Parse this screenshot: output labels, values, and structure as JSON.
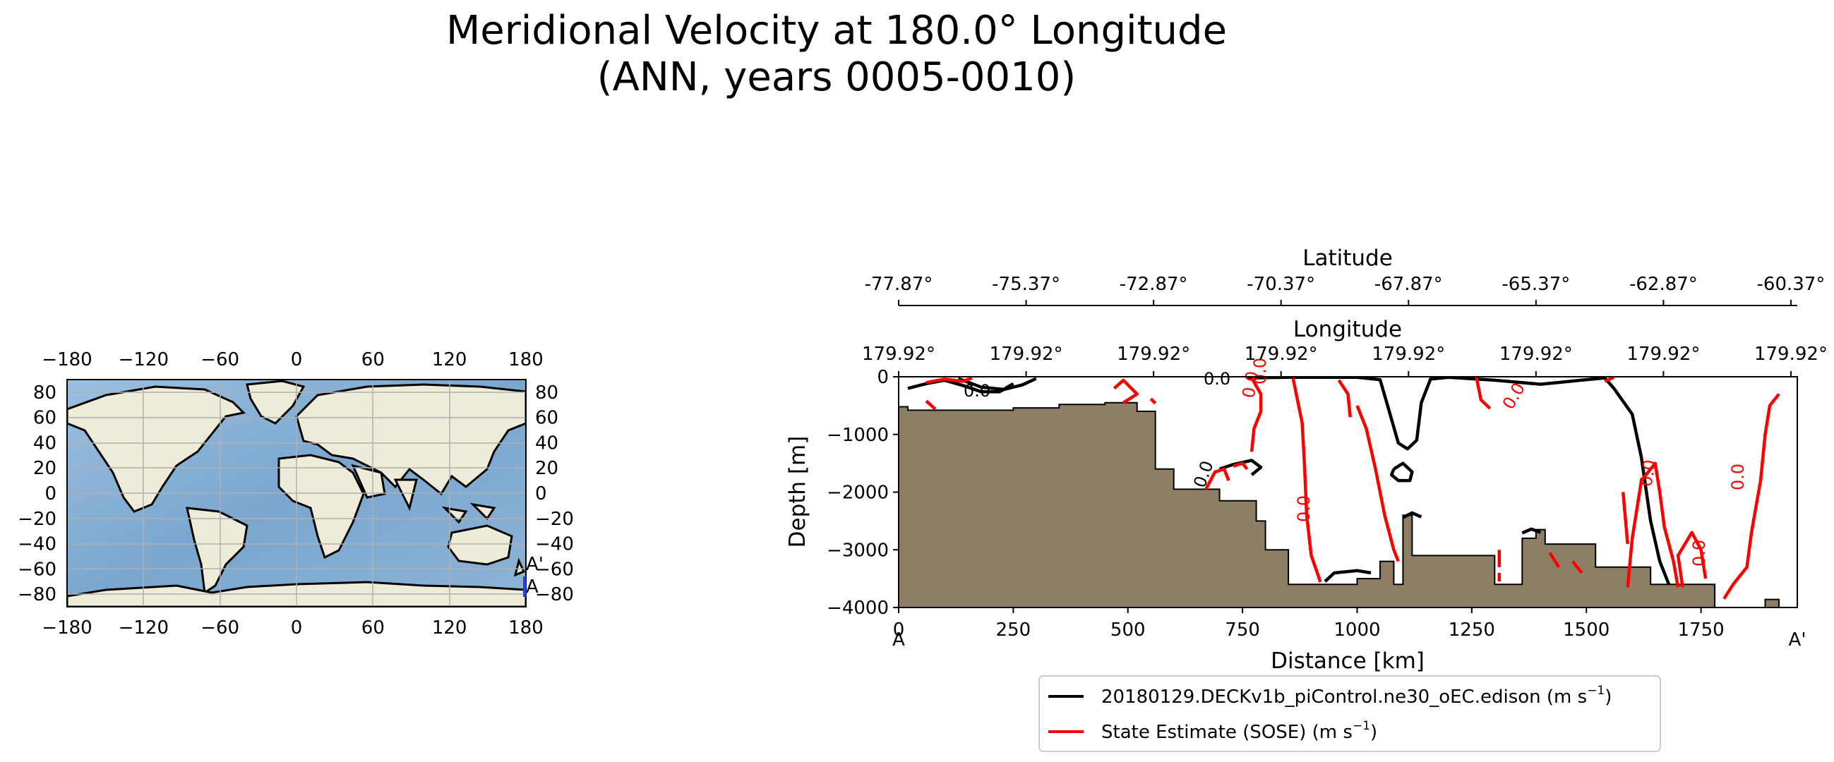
{
  "figure": {
    "title_line1": "Meridional Velocity at 180.0° Longitude",
    "title_line2": "(ANN, years 0005-0010)"
  },
  "colors": {
    "ocean": "#8db4d6",
    "ocean_deep": "#6f9cc8",
    "land": "#efebd9",
    "seafloor": "#8e7e65",
    "model_line": "#000000",
    "obs_line": "#ff0000",
    "transect": "#1f3fff",
    "grid": "#b0b0b0"
  },
  "chart_data": [
    {
      "type": "map",
      "name": "global-map-inset",
      "projection": "PlateCarree",
      "x_ticks": [
        "−180",
        "−120",
        "−60",
        "0",
        "60",
        "120",
        "180"
      ],
      "x_tick_values": [
        -180,
        -120,
        -60,
        0,
        60,
        120,
        180
      ],
      "y_ticks_left": [
        "80",
        "60",
        "40",
        "20",
        "0",
        "−20",
        "−40",
        "−60",
        "−80"
      ],
      "y_ticks_right": [
        "80",
        "60",
        "40",
        "20",
        "0",
        "−20",
        "−40",
        "−60",
        "−80"
      ],
      "y_tick_values": [
        80,
        60,
        40,
        20,
        0,
        -20,
        -40,
        -60,
        -80
      ],
      "xlim": [
        -180,
        180
      ],
      "ylim": [
        -90,
        90
      ],
      "transect": {
        "lon": 180.0,
        "lat_start": -77.87,
        "lat_end": -60.37,
        "label_start": "A",
        "label_end": "A'"
      }
    },
    {
      "type": "contour",
      "name": "meridional-velocity-section",
      "xlabel": "Distance [km]",
      "ylabel": "Depth [m]",
      "xlim": [
        0,
        1960
      ],
      "ylim": [
        -4000,
        0
      ],
      "x_ticks": [
        "0",
        "250",
        "500",
        "750",
        "1000",
        "1250",
        "1500",
        "1750"
      ],
      "x_tick_values": [
        0,
        250,
        500,
        750,
        1000,
        1250,
        1500,
        1750
      ],
      "y_ticks": [
        "0",
        "−1000",
        "−2000",
        "−3000",
        "−4000"
      ],
      "y_tick_values": [
        0,
        -1000,
        -2000,
        -3000,
        -4000
      ],
      "endpoint_labels": {
        "start": "A",
        "end": "A'"
      },
      "top_axis_longitude": {
        "label": "Longitude",
        "ticks": [
          "179.92°",
          "179.92°",
          "179.92°",
          "179.92°",
          "179.92°",
          "179.92°",
          "179.92°",
          "179.92°"
        ]
      },
      "top_axis_latitude": {
        "label": "Latitude",
        "ticks": [
          "-77.87°",
          "-75.37°",
          "-72.87°",
          "-70.37°",
          "-67.87°",
          "-65.37°",
          "-62.87°",
          "-60.37°"
        ]
      },
      "contour_level": 0.0,
      "contour_labels": [
        "0.0",
        "0.0",
        "0.0",
        "0.0",
        "0.0",
        "0.0",
        "0.0",
        "0.0",
        "0.0",
        "0.0"
      ],
      "bathymetry_km_depth": [
        [
          0,
          -520
        ],
        [
          20,
          -520
        ],
        [
          20,
          -580
        ],
        [
          250,
          -580
        ],
        [
          250,
          -540
        ],
        [
          350,
          -540
        ],
        [
          350,
          -480
        ],
        [
          450,
          -480
        ],
        [
          450,
          -450
        ],
        [
          520,
          -450
        ],
        [
          520,
          -600
        ],
        [
          560,
          -600
        ],
        [
          560,
          -1600
        ],
        [
          600,
          -1600
        ],
        [
          600,
          -1950
        ],
        [
          700,
          -1950
        ],
        [
          700,
          -2150
        ],
        [
          780,
          -2150
        ],
        [
          780,
          -2500
        ],
        [
          800,
          -2500
        ],
        [
          800,
          -3000
        ],
        [
          850,
          -3000
        ],
        [
          850,
          -3600
        ],
        [
          1000,
          -3600
        ],
        [
          1000,
          -3500
        ],
        [
          1050,
          -3500
        ],
        [
          1050,
          -3200
        ],
        [
          1080,
          -3200
        ],
        [
          1080,
          -3600
        ],
        [
          1100,
          -3600
        ],
        [
          1100,
          -2400
        ],
        [
          1120,
          -2400
        ],
        [
          1120,
          -3100
        ],
        [
          1300,
          -3100
        ],
        [
          1300,
          -3600
        ],
        [
          1360,
          -3600
        ],
        [
          1360,
          -2800
        ],
        [
          1390,
          -2800
        ],
        [
          1390,
          -2650
        ],
        [
          1410,
          -2650
        ],
        [
          1410,
          -2900
        ],
        [
          1520,
          -2900
        ],
        [
          1520,
          -3300
        ],
        [
          1640,
          -3300
        ],
        [
          1640,
          -3600
        ],
        [
          1780,
          -3600
        ],
        [
          1780,
          -4000
        ],
        [
          1890,
          -4000
        ],
        [
          1890,
          -3860
        ],
        [
          1920,
          -3860
        ],
        [
          1920,
          -4000
        ],
        [
          1960,
          -4000
        ]
      ],
      "series": [
        {
          "name": "model",
          "legend_prefix": "20180129.DECKv1b_piControl.ne30_oEC.edison (m s",
          "legend_unit_sup": "−1",
          "legend_suffix": ")",
          "lines": [
            [
              [
                20,
                -200
              ],
              [
                60,
                -120
              ],
              [
                100,
                -60
              ],
              [
                140,
                -150
              ],
              [
                180,
                -260
              ],
              [
                220,
                -260
              ],
              [
                250,
                -120
              ]
            ],
            [
              [
                130,
                -30
              ],
              [
                180,
                -180
              ],
              [
                230,
                -220
              ],
              [
                270,
                -140
              ],
              [
                300,
                -30
              ]
            ],
            [
              [
                760,
                -20
              ],
              [
                850,
                -10
              ],
              [
                1000,
                -10
              ],
              [
                1050,
                -50
              ],
              [
                1070,
                -600
              ],
              [
                1090,
                -1150
              ],
              [
                1110,
                -1250
              ],
              [
                1130,
                -1100
              ],
              [
                1140,
                -450
              ],
              [
                1160,
                -40
              ],
              [
                1200,
                -10
              ],
              [
                1300,
                -60
              ],
              [
                1400,
                -130
              ],
              [
                1500,
                -50
              ],
              [
                1540,
                -20
              ],
              [
                1560,
                -200
              ],
              [
                1600,
                -650
              ],
              [
                1620,
                -1400
              ],
              [
                1640,
                -2500
              ],
              [
                1660,
                -3200
              ],
              [
                1680,
                -3600
              ]
            ],
            [
              [
                1080,
                -1600
              ],
              [
                1100,
                -1500
              ],
              [
                1120,
                -1650
              ],
              [
                1115,
                -1800
              ],
              [
                1090,
                -1800
              ],
              [
                1075,
                -1700
              ],
              [
                1080,
                -1600
              ]
            ],
            [
              [
                930,
                -3550
              ],
              [
                950,
                -3400
              ],
              [
                1000,
                -3360
              ],
              [
                1030,
                -3400
              ]
            ],
            [
              [
                1100,
                -2440
              ],
              [
                1120,
                -2360
              ],
              [
                1140,
                -2430
              ]
            ],
            [
              [
                1360,
                -2710
              ],
              [
                1380,
                -2640
              ],
              [
                1400,
                -2700
              ]
            ],
            [
              [
                700,
                -1600
              ],
              [
                730,
                -1520
              ],
              [
                770,
                -1450
              ],
              [
                790,
                -1570
              ],
              [
                770,
                -1700
              ]
            ]
          ]
        },
        {
          "name": "obs",
          "legend_prefix": "State Estimate (SOSE) (m s",
          "legend_unit_sup": "−1",
          "legend_suffix": ")",
          "lines": [
            [
              [
                60,
                -100
              ],
              [
                100,
                -40
              ],
              [
                140,
                -80
              ],
              [
                160,
                -20
              ]
            ],
            [
              [
                60,
                -420
              ],
              [
                80,
                -560
              ]
            ],
            [
              [
                470,
                -200
              ],
              [
                490,
                -60
              ],
              [
                520,
                -300
              ],
              [
                490,
                -450
              ]
            ],
            [
              [
                550,
                -380
              ],
              [
                560,
                -460
              ]
            ],
            [
              [
                770,
                -20
              ],
              [
                790,
                -300
              ],
              [
                790,
                -600
              ],
              [
                775,
                -900
              ],
              [
                770,
                -1300
              ]
            ],
            [
              [
                860,
                -20
              ],
              [
                880,
                -800
              ],
              [
                885,
                -1500
              ],
              [
                890,
                -2400
              ],
              [
                900,
                -3100
              ],
              [
                920,
                -3560
              ]
            ],
            [
              [
                960,
                -60
              ],
              [
                980,
                -300
              ],
              [
                985,
                -700
              ]
            ],
            [
              [
                1000,
                -500
              ],
              [
                1020,
                -900
              ],
              [
                1040,
                -1600
              ],
              [
                1060,
                -2400
              ],
              [
                1080,
                -3000
              ],
              [
                1090,
                -3200
              ]
            ],
            [
              [
                1260,
                -10
              ],
              [
                1270,
                -400
              ],
              [
                1290,
                -550
              ]
            ],
            [
              [
                1560,
                -10
              ],
              [
                1540,
                -80
              ]
            ],
            [
              [
                1590,
                -3650
              ],
              [
                1600,
                -2800
              ],
              [
                1620,
                -1800
              ],
              [
                1650,
                -1500
              ],
              [
                1660,
                -2000
              ],
              [
                1670,
                -2600
              ],
              [
                1690,
                -3200
              ],
              [
                1700,
                -3650
              ]
            ],
            [
              [
                1710,
                -3650
              ],
              [
                1700,
                -3100
              ],
              [
                1730,
                -2700
              ],
              [
                1750,
                -3000
              ],
              [
                1760,
                -3500
              ]
            ],
            [
              [
                1800,
                -3850
              ],
              [
                1820,
                -3600
              ],
              [
                1850,
                -3300
              ],
              [
                1860,
                -2700
              ],
              [
                1880,
                -1800
              ],
              [
                1890,
                -1000
              ],
              [
                1900,
                -500
              ],
              [
                1920,
                -300
              ]
            ],
            [
              [
                670,
                -1950
              ],
              [
                690,
                -1650
              ],
              [
                710,
                -1600
              ],
              [
                720,
                -1800
              ]
            ],
            [
              [
                730,
                -1550
              ],
              [
                750,
                -1500
              ],
              [
                760,
                -1600
              ]
            ],
            [
              [
                1310,
                -3000
              ],
              [
                1310,
                -3300
              ]
            ],
            [
              [
                1310,
                -3400
              ],
              [
                1310,
                -3550
              ]
            ],
            [
              [
                1420,
                -3050
              ],
              [
                1440,
                -3300
              ]
            ],
            [
              [
                1470,
                -3200
              ],
              [
                1490,
                -3400
              ]
            ],
            [
              [
                1580,
                -2000
              ],
              [
                1590,
                -2900
              ]
            ]
          ]
        }
      ]
    }
  ]
}
